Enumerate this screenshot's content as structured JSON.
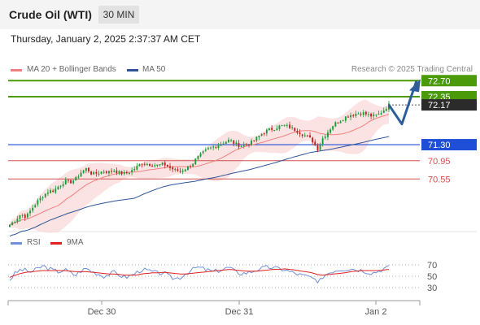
{
  "header": {
    "title": "Crude Oil (WTI)",
    "timeframe": "30 MIN"
  },
  "datetime": "Thursday, January 2, 2025 2:37:37 AM CET",
  "legend": [
    {
      "label": "MA 20 + Bollinger Bands",
      "color": "#f08080"
    },
    {
      "label": "MA 50",
      "color": "#2f5597"
    }
  ],
  "credit": "Research © 2025 Trading Central",
  "rsi_legend": [
    {
      "label": "RSI",
      "color": "#6f8fd8"
    },
    {
      "label": "9MA",
      "color": "#e02020"
    }
  ],
  "colors": {
    "up": "#1a9b3a",
    "down": "#c02020",
    "green_level": "#4a9a0a",
    "blue_level": "#1f4fd6",
    "red_level": "#d05050",
    "arrow": "#2d5e9a",
    "dark_label": "#2b2b2b"
  },
  "chart_data": [
    {
      "type": "candlestick",
      "x_ticks": [
        "Dec 30",
        "Dec 31",
        "Jan 2"
      ],
      "price_range": [
        69.4,
        72.9
      ],
      "levels": [
        {
          "value": 72.7,
          "label": "72.70",
          "kind": "resistance",
          "color": "#4a9a0a"
        },
        {
          "value": 72.35,
          "label": "72.35",
          "kind": "resistance",
          "color": "#4a9a0a"
        },
        {
          "value": 72.17,
          "label": "72.17",
          "kind": "last",
          "color": "#2b2b2b"
        },
        {
          "value": 71.3,
          "label": "71.30",
          "kind": "pivot",
          "color": "#1f4fd6"
        },
        {
          "value": 70.95,
          "label": "70.95",
          "kind": "support",
          "color": "#d05050"
        },
        {
          "value": 70.55,
          "label": "70.55",
          "kind": "support",
          "color": "#d05050"
        }
      ],
      "projection": [
        72.17,
        71.75,
        72.7
      ],
      "close_path": [
        69.55,
        69.65,
        69.78,
        69.72,
        69.9,
        70.05,
        70.18,
        70.28,
        70.3,
        70.4,
        70.5,
        70.48,
        70.55,
        70.7,
        70.78,
        70.65,
        70.68,
        70.72,
        70.7,
        70.74,
        70.68,
        70.66,
        70.72,
        70.8,
        70.9,
        70.88,
        70.86,
        70.85,
        70.88,
        70.8,
        70.75,
        70.72,
        70.78,
        70.85,
        71.0,
        71.1,
        71.2,
        71.25,
        71.3,
        71.35,
        71.4,
        71.32,
        71.28,
        71.3,
        71.35,
        71.45,
        71.55,
        71.62,
        71.65,
        71.7,
        71.72,
        71.68,
        71.62,
        71.55,
        71.48,
        71.4,
        71.2,
        71.45,
        71.6,
        71.75,
        71.82,
        71.9,
        71.95,
        71.98,
        72.0,
        71.96,
        71.92,
        71.95,
        72.05,
        72.17
      ],
      "rsi_levels": [
        70,
        50,
        30
      ],
      "rsi_path": [
        44,
        55,
        62,
        60,
        57,
        63,
        68,
        64,
        60,
        58,
        62,
        56,
        52,
        60,
        64,
        58,
        55,
        50,
        53,
        57,
        52,
        48,
        51,
        56,
        62,
        60,
        58,
        55,
        57,
        49,
        46,
        48,
        55,
        60,
        66,
        64,
        61,
        58,
        60,
        63,
        66,
        58,
        55,
        56,
        58,
        62,
        64,
        66,
        65,
        63,
        62,
        58,
        55,
        52,
        50,
        48,
        36,
        50,
        56,
        60,
        62,
        63,
        64,
        62,
        61,
        58,
        56,
        59,
        63,
        66
      ],
      "rsi_ma9_path": [
        48,
        52,
        55,
        57,
        58,
        59,
        60,
        60,
        60,
        60,
        60,
        59,
        58,
        58,
        58,
        57,
        56,
        55,
        54,
        54,
        53,
        52,
        52,
        52,
        54,
        55,
        56,
        56,
        57,
        56,
        55,
        54,
        54,
        55,
        56,
        57,
        58,
        59,
        60,
        61,
        62,
        61,
        60,
        59,
        59,
        59,
        60,
        61,
        62,
        62,
        63,
        62,
        61,
        59,
        58,
        56,
        53,
        52,
        53,
        54,
        55,
        56,
        58,
        59,
        60,
        60,
        60,
        60,
        61,
        62
      ]
    }
  ]
}
